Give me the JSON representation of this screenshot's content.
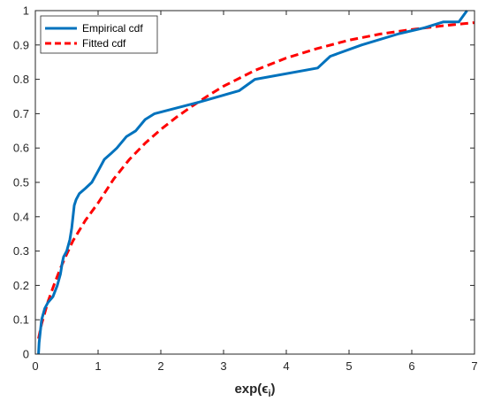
{
  "chart_data": {
    "type": "line",
    "xlabel": "exp(ϵ",
    "xlabel_sub": "i",
    "xlabel_close": ")",
    "xlim": [
      0,
      7
    ],
    "ylim": [
      0,
      1
    ],
    "x_ticks": [
      0,
      1,
      2,
      3,
      4,
      5,
      6,
      7
    ],
    "y_ticks": [
      0,
      0.1,
      0.2,
      0.3,
      0.4,
      0.5,
      0.6,
      0.7,
      0.8,
      0.9,
      1
    ],
    "legend_position": "top-left",
    "series": [
      {
        "name": "Empirical cdf",
        "color": "#0072BD",
        "style": "solid",
        "x": [
          0.05,
          0.06,
          0.08,
          0.1,
          0.15,
          0.2,
          0.28,
          0.35,
          0.4,
          0.43,
          0.45,
          0.5,
          0.55,
          0.58,
          0.6,
          0.62,
          0.65,
          0.7,
          0.8,
          0.9,
          1.0,
          1.1,
          1.2,
          1.3,
          1.45,
          1.6,
          1.75,
          1.9,
          2.6,
          3.25,
          3.5,
          4.5,
          4.7,
          5.2,
          5.8,
          6.2,
          6.5,
          6.75,
          6.88
        ],
        "y": [
          0.0,
          0.033,
          0.067,
          0.1,
          0.133,
          0.15,
          0.167,
          0.2,
          0.233,
          0.267,
          0.283,
          0.3,
          0.333,
          0.367,
          0.4,
          0.433,
          0.45,
          0.467,
          0.483,
          0.5,
          0.533,
          0.567,
          0.583,
          0.6,
          0.633,
          0.65,
          0.683,
          0.7,
          0.733,
          0.767,
          0.8,
          0.833,
          0.867,
          0.9,
          0.933,
          0.95,
          0.967,
          0.967,
          1.0
        ]
      },
      {
        "name": "Fitted cdf",
        "color": "#FF0000",
        "style": "dashed",
        "x": [
          0.05,
          0.1,
          0.2,
          0.3,
          0.4,
          0.5,
          0.6,
          0.8,
          1.0,
          1.25,
          1.5,
          1.75,
          2.0,
          2.25,
          2.5,
          2.75,
          3.0,
          3.5,
          4.0,
          4.5,
          5.0,
          5.5,
          6.0,
          6.5,
          7.0
        ],
        "y": [
          0.045,
          0.088,
          0.152,
          0.203,
          0.25,
          0.291,
          0.33,
          0.39,
          0.44,
          0.51,
          0.567,
          0.614,
          0.654,
          0.69,
          0.722,
          0.752,
          0.78,
          0.826,
          0.862,
          0.89,
          0.914,
          0.932,
          0.945,
          0.956,
          0.965
        ]
      }
    ]
  }
}
